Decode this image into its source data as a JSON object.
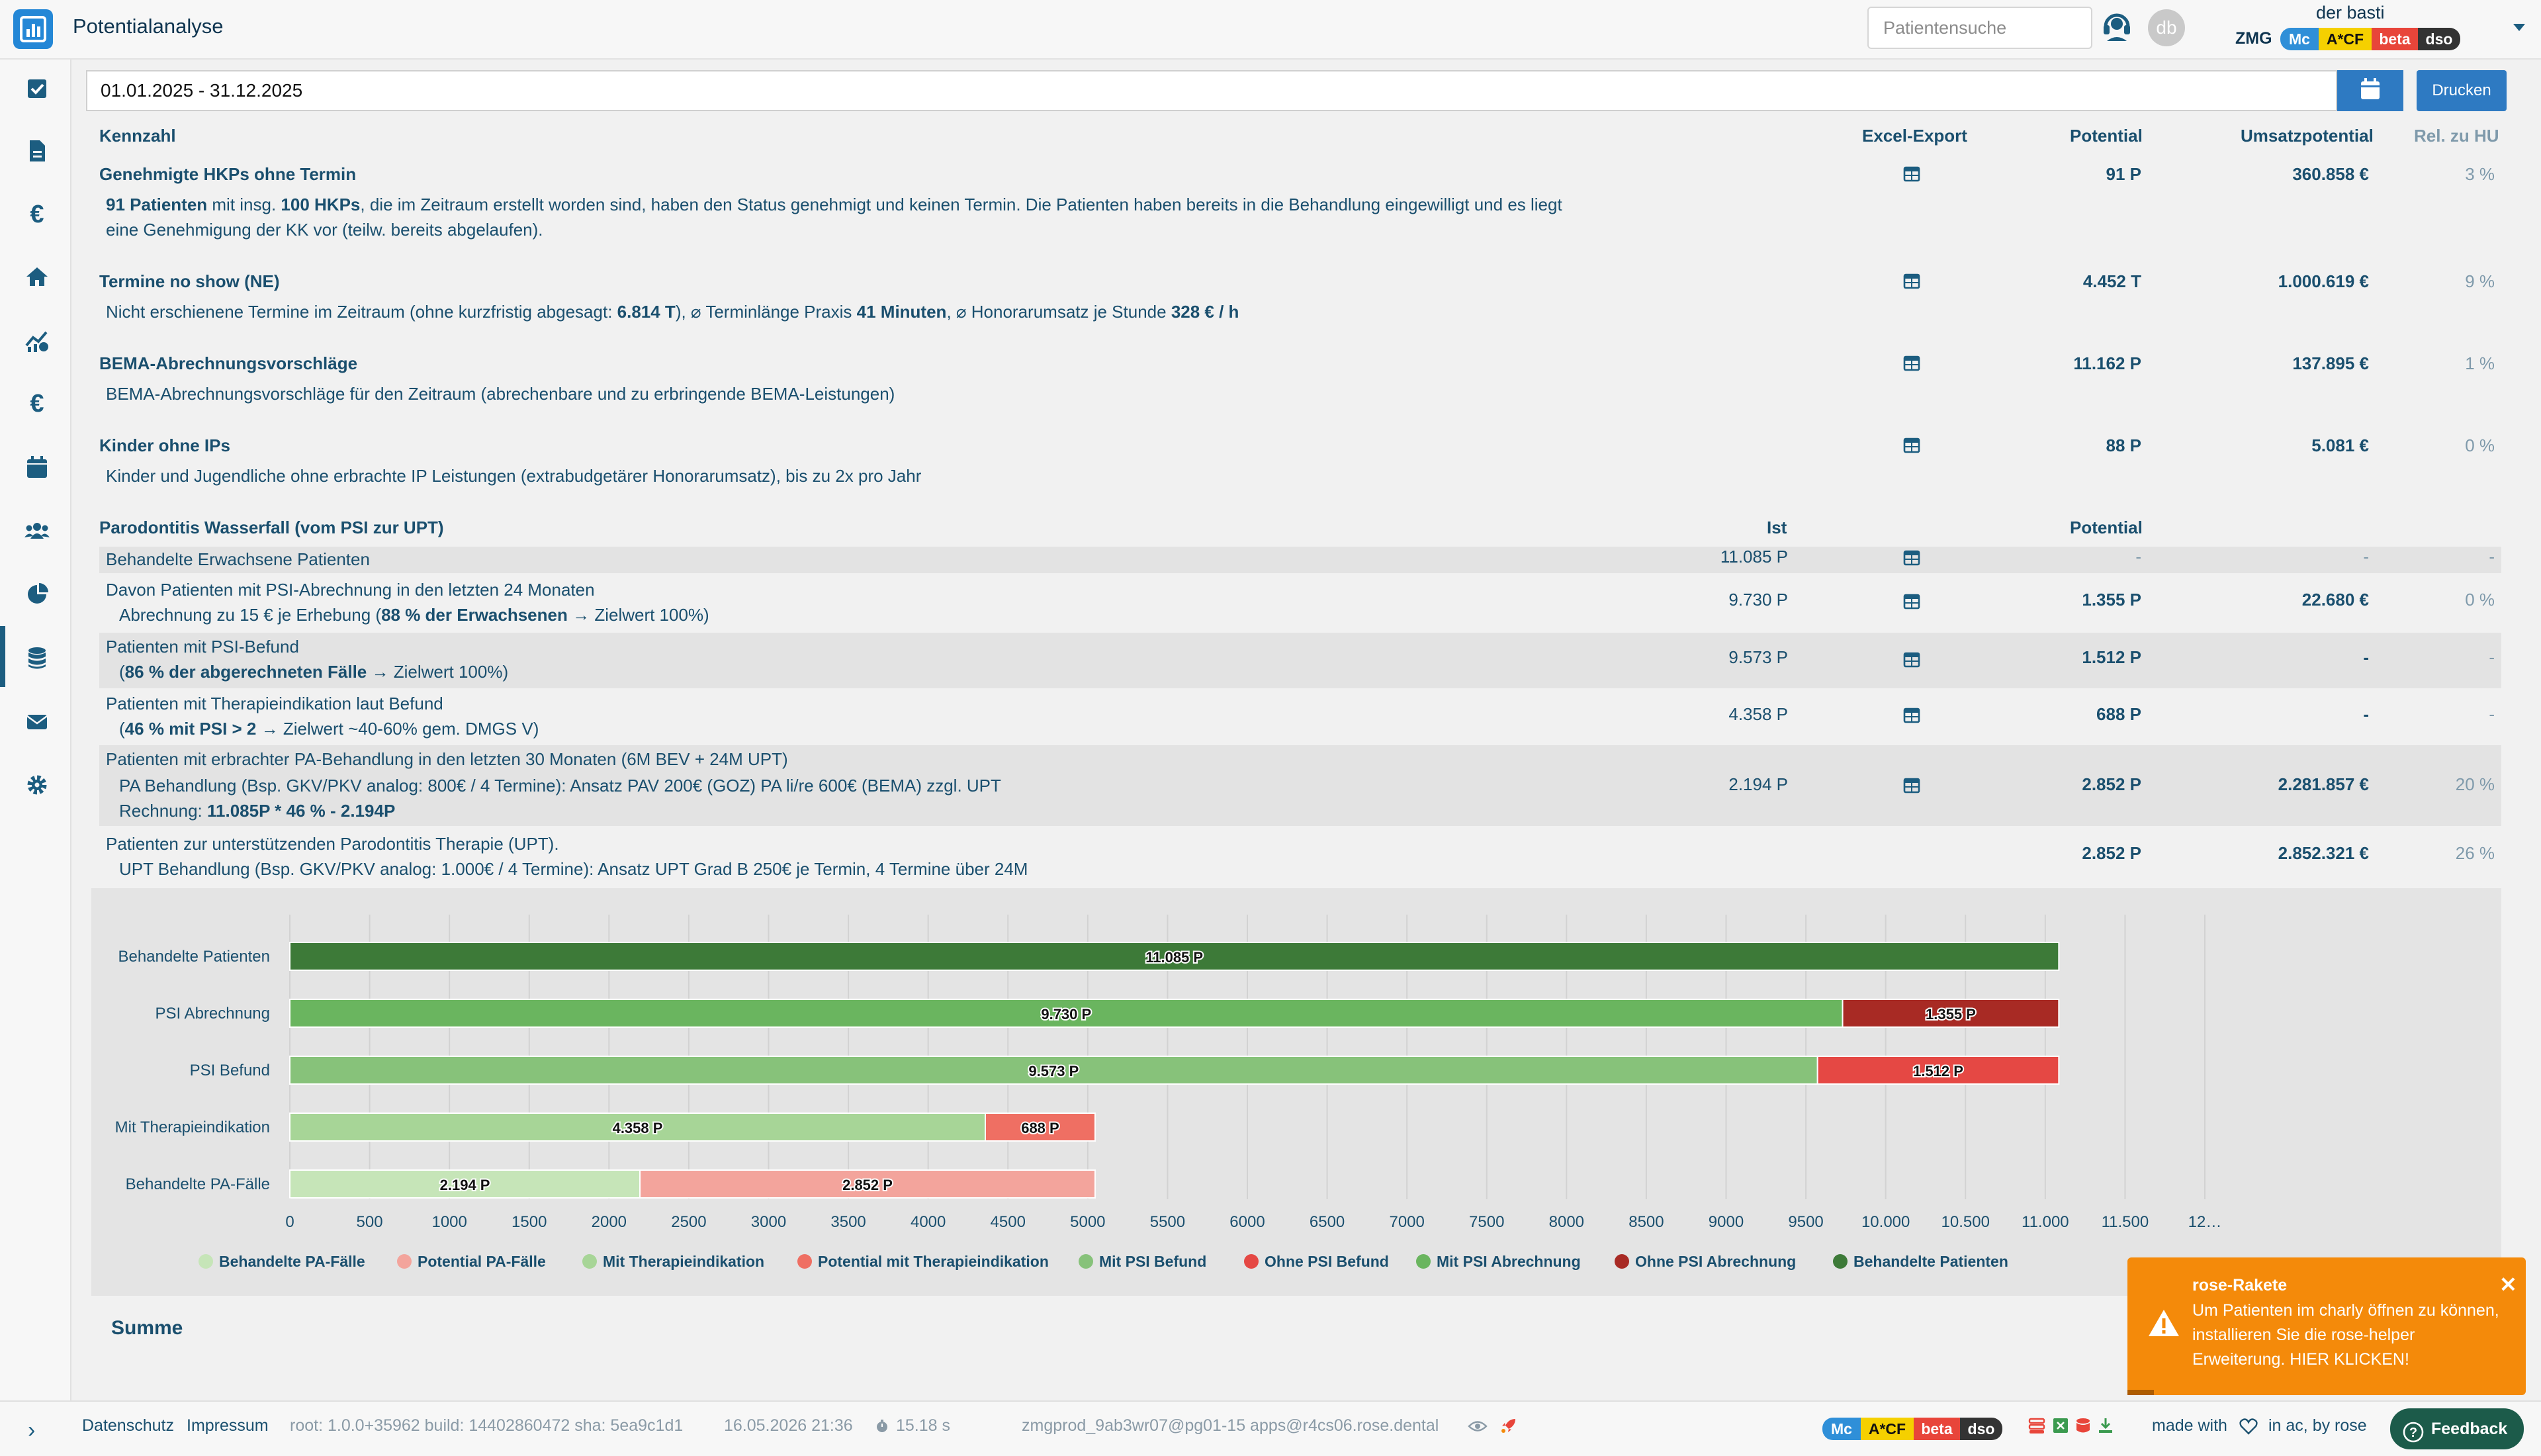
{
  "header": {
    "title": "Potentialanalyse",
    "search_placeholder": "Patientensuche",
    "user_name": "der basti",
    "practice": "ZMG",
    "avatar_initials": "db",
    "badges": [
      "Mc",
      "A*CF",
      "beta",
      "dso"
    ]
  },
  "sidebar": {
    "icons": [
      "checkbox-icon",
      "document-icon",
      "euro-icon",
      "home-icon",
      "analytics-icon",
      "euro-icon-2",
      "calendar-icon",
      "users-icon",
      "pie-chart-icon",
      "database-icon",
      "mail-icon",
      "gear-icon"
    ],
    "active": "pie-chart-icon"
  },
  "filter": {
    "date_range": "01.01.2025 - 31.12.2025",
    "print_label": "Drucken"
  },
  "table": {
    "headers": {
      "kennzahl": "Kennzahl",
      "export": "Excel-Export",
      "potential": "Potential",
      "umsatz": "Umsatzpotential",
      "rel": "Rel. zu HU"
    },
    "sections": [
      {
        "title": "Genehmigte HKPs ohne Termin",
        "desc_parts": [
          {
            "b": "91 Patienten"
          },
          {
            "t": " mit insg. "
          },
          {
            "b": "100 HKPs"
          },
          {
            "t": ", die im Zeitraum erstellt worden sind, haben den Status genehmigt und keinen Termin. Die Patienten haben bereits in die Behandlung eingewilligt und es liegt"
          }
        ],
        "desc_line2": "eine Genehmigung der KK vor (teilw. bereits abgelaufen).",
        "potential": "91 P",
        "umsatz": "360.858 €",
        "rel": "3 %"
      },
      {
        "title": "Termine no show (NE)",
        "desc_parts": [
          {
            "t": "Nicht erschienene Termine im Zeitraum (ohne kurzfristig abgesagt: "
          },
          {
            "b": "6.814 T"
          },
          {
            "t": "), ⌀ Terminlänge Praxis "
          },
          {
            "b": "41 Minuten"
          },
          {
            "t": ", ⌀ Honorarumsatz je Stunde "
          },
          {
            "b": "328 € / h"
          }
        ],
        "potential": "4.452 T",
        "umsatz": "1.000.619 €",
        "rel": "9 %"
      },
      {
        "title": "BEMA-Abrechnungsvorschläge",
        "desc": "BEMA-Abrechnungsvorschläge für den Zeitraum (abrechenbare und zu erbringende BEMA-Leistungen)",
        "potential": "11.162 P",
        "umsatz": "137.895 €",
        "rel": "1 %"
      },
      {
        "title": "Kinder ohne IPs",
        "desc": "Kinder und Jugendliche ohne erbrachte IP Leistungen (extrabudgetärer Honorarumsatz), bis zu 2x pro Jahr",
        "potential": "88 P",
        "umsatz": "5.081 €",
        "rel": "0 %"
      }
    ]
  },
  "wasserfall": {
    "title": "Parodontitis Wasserfall (vom PSI zur UPT)",
    "ist_label": "Ist",
    "potential_label": "Potential",
    "rows": [
      {
        "l1": "Behandelte Erwachsene Patienten",
        "ist": "11.085 P",
        "potential": "-",
        "umsatz": "-",
        "rel": "-"
      },
      {
        "l1": "Davon Patienten mit PSI-Abrechnung in den letzten 24 Monaten",
        "l2a": "Abrechnung zu 15 € je Erhebung (",
        "l2b": "88 % der Erwachsenen",
        "l2c": " → Zielwert 100%)",
        "ist": "9.730 P",
        "potential": "1.355 P",
        "umsatz": "22.680 €",
        "rel": "0 %"
      },
      {
        "l1": "Patienten mit PSI-Befund",
        "l2a": "(",
        "l2b": "86 % der abgerechneten Fälle",
        "l2c": " → Zielwert 100%)",
        "ist": "9.573 P",
        "potential": "1.512 P",
        "umsatz": "-",
        "rel": "-"
      },
      {
        "l1": "Patienten mit Therapieindikation laut Befund",
        "l2a": "(",
        "l2b": "46 % mit PSI > 2",
        "l2c": " → Zielwert ~40-60% gem. DMGS V)",
        "ist": "4.358 P",
        "potential": "688 P",
        "umsatz": "-",
        "rel": "-"
      },
      {
        "l1": "Patienten mit erbrachter PA-Behandlung in den letzten 30 Monaten (6M BEV + 24M UPT)",
        "l2": "PA Behandlung (Bsp. GKV/PKV analog: 800€ / 4 Termine): Ansatz PAV 200€ (GOZ) PA li/re 600€ (BEMA) zzgl. UPT",
        "l3a": "Rechnung: ",
        "l3b": "11.085P * 46 % - 2.194P",
        "ist": "2.194 P",
        "potential": "2.852 P",
        "umsatz": "2.281.857 €",
        "rel": "20 %"
      },
      {
        "l1": "Patienten zur unterstützenden Parodontitis Therapie (UPT).",
        "l2": "UPT Behandlung (Bsp. GKV/PKV analog: 1.000€ / 4 Termine): Ansatz UPT Grad B 250€ je Termin, 4 Termine über 24M",
        "ist": "",
        "potential": "2.852 P",
        "umsatz": "2.852.321 €",
        "rel": "26 %"
      }
    ]
  },
  "chart_data": {
    "type": "bar",
    "orientation": "horizontal",
    "stacked": true,
    "categories": [
      "Behandelte Patienten",
      "PSI Abrechnung",
      "PSI Befund",
      "Mit Therapieindikation",
      "Behandelte PA-Fälle"
    ],
    "series": [
      {
        "name": "Behandelte Patienten",
        "color": "#3d7a38",
        "values": [
          11085,
          0,
          0,
          0,
          0
        ],
        "labels": [
          "11.085 P",
          "",
          "",
          "",
          ""
        ]
      },
      {
        "name": "Mit PSI Abrechnung",
        "color": "#6ab55f",
        "values": [
          0,
          9730,
          0,
          0,
          0
        ],
        "labels": [
          "",
          "9.730 P",
          "",
          "",
          ""
        ]
      },
      {
        "name": "Ohne PSI Abrechnung",
        "color": "#a82a24",
        "values": [
          0,
          1355,
          0,
          0,
          0
        ],
        "labels": [
          "",
          "1.355 P",
          "",
          "",
          ""
        ]
      },
      {
        "name": "Mit PSI Befund",
        "color": "#87c27a",
        "values": [
          0,
          0,
          9573,
          0,
          0
        ],
        "labels": [
          "",
          "",
          "9.573 P",
          "",
          ""
        ]
      },
      {
        "name": "Ohne PSI Befund",
        "color": "#e54844",
        "values": [
          0,
          0,
          1512,
          0,
          0
        ],
        "labels": [
          "",
          "",
          "1.512 P",
          "",
          ""
        ]
      },
      {
        "name": "Mit Therapieindikation",
        "color": "#a7d597",
        "values": [
          0,
          0,
          0,
          4358,
          0
        ],
        "labels": [
          "",
          "",
          "",
          "4.358 P",
          ""
        ]
      },
      {
        "name": "Potential mit Therapieindikation",
        "color": "#ef6f63",
        "values": [
          0,
          0,
          0,
          688,
          0
        ],
        "labels": [
          "",
          "",
          "",
          "688 P",
          ""
        ]
      },
      {
        "name": "Behandelte PA-Fälle",
        "color": "#c6e5b8",
        "values": [
          0,
          0,
          0,
          0,
          2194
        ],
        "labels": [
          "",
          "",
          "",
          "",
          "2.194 P"
        ]
      },
      {
        "name": "Potential PA-Fälle",
        "color": "#f3a49c",
        "values": [
          0,
          0,
          0,
          0,
          2852
        ],
        "labels": [
          "",
          "",
          "",
          "",
          "2.852 P"
        ]
      }
    ],
    "xlim": [
      0,
      12000
    ],
    "xticks": [
      "0",
      "500",
      "1000",
      "1500",
      "2000",
      "2500",
      "3000",
      "3500",
      "4000",
      "4500",
      "5000",
      "5500",
      "6000",
      "6500",
      "7000",
      "7500",
      "8000",
      "8500",
      "9000",
      "9500",
      "10.000",
      "10.500",
      "11.000",
      "11.500",
      "12…"
    ],
    "legend_order": [
      "Behandelte PA-Fälle",
      "Potential PA-Fälle",
      "Mit Therapieindikation",
      "Potential mit Therapieindikation",
      "Mit PSI Befund",
      "Ohne PSI Befund",
      "Mit PSI Abrechnung",
      "Ohne PSI Abrechnung",
      "Behandelte Patienten"
    ],
    "legend_position": "bottom",
    "grid": true
  },
  "summe_label": "Summe",
  "footer": {
    "datenschutz": "Datenschutz",
    "impressum": "Impressum",
    "version": "root: 1.0.0+35962 build: 14402860472 sha: 5ea9c1d1",
    "datetime": "16.05.2026 21:36",
    "duration": "15.18 s",
    "host": "zmgprod_9ab3wr07@pg01-15 apps@r4cs06.rose.dental",
    "made_with": "made with",
    "by": "in ac, by rose",
    "feedback": "Feedback"
  },
  "toast": {
    "title": "rose-Rakete",
    "message": "Um Patienten im charly öffnen zu können, installieren Sie die rose-helper Erweiterung. HIER KLICKEN!"
  }
}
